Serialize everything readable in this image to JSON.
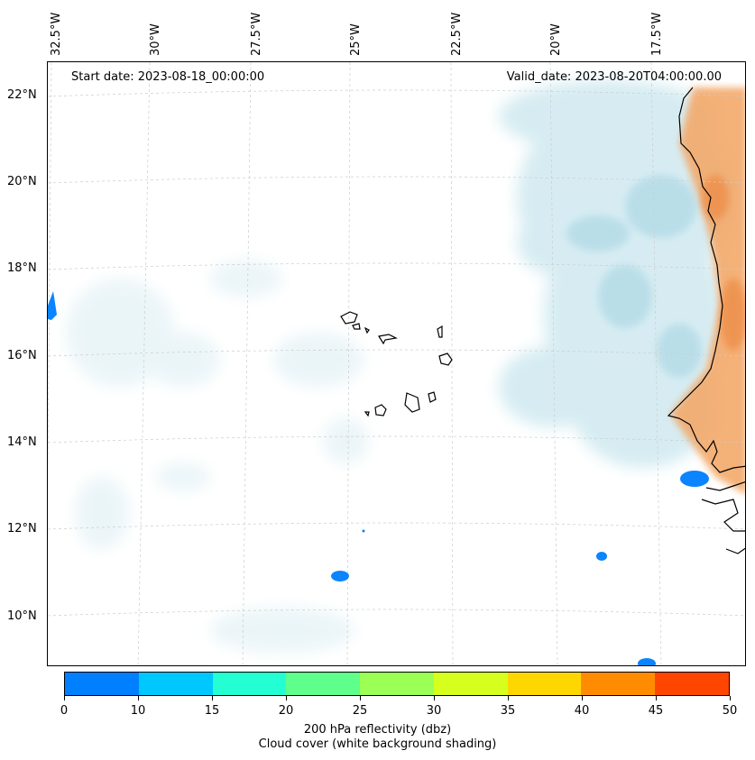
{
  "map": {
    "start_date": "Start date: 2023-08-18_00:00:00",
    "valid_date": "Valid_date: 2023-08-20T04:00:00.00",
    "lon_labels": [
      "32.5°W",
      "30°W",
      "27.5°W",
      "25°W",
      "22.5°W",
      "20°W",
      "17.5°W"
    ],
    "lat_labels": [
      "22°N",
      "20°N",
      "18°N",
      "16°N",
      "14°N",
      "12°N",
      "10°N"
    ],
    "colors": {
      "cloud": "#c9e6ee",
      "dust": "#f0a060",
      "coastline": "#000000",
      "gridline": "#cccccc",
      "reflectivity_0_10": "#0a84ff"
    }
  },
  "colorbar": {
    "ticks": [
      "0",
      "10",
      "15",
      "20",
      "25",
      "30",
      "35",
      "40",
      "45",
      "50"
    ],
    "colors": [
      "#0080ff",
      "#00c8ff",
      "#23ffd2",
      "#5fff8c",
      "#9bff55",
      "#d7ff1e",
      "#ffd700",
      "#ff8c00",
      "#ff4600"
    ],
    "label": "200 hPa reflectivity (dbz)",
    "sublabel": "Cloud cover (white background shading)"
  }
}
